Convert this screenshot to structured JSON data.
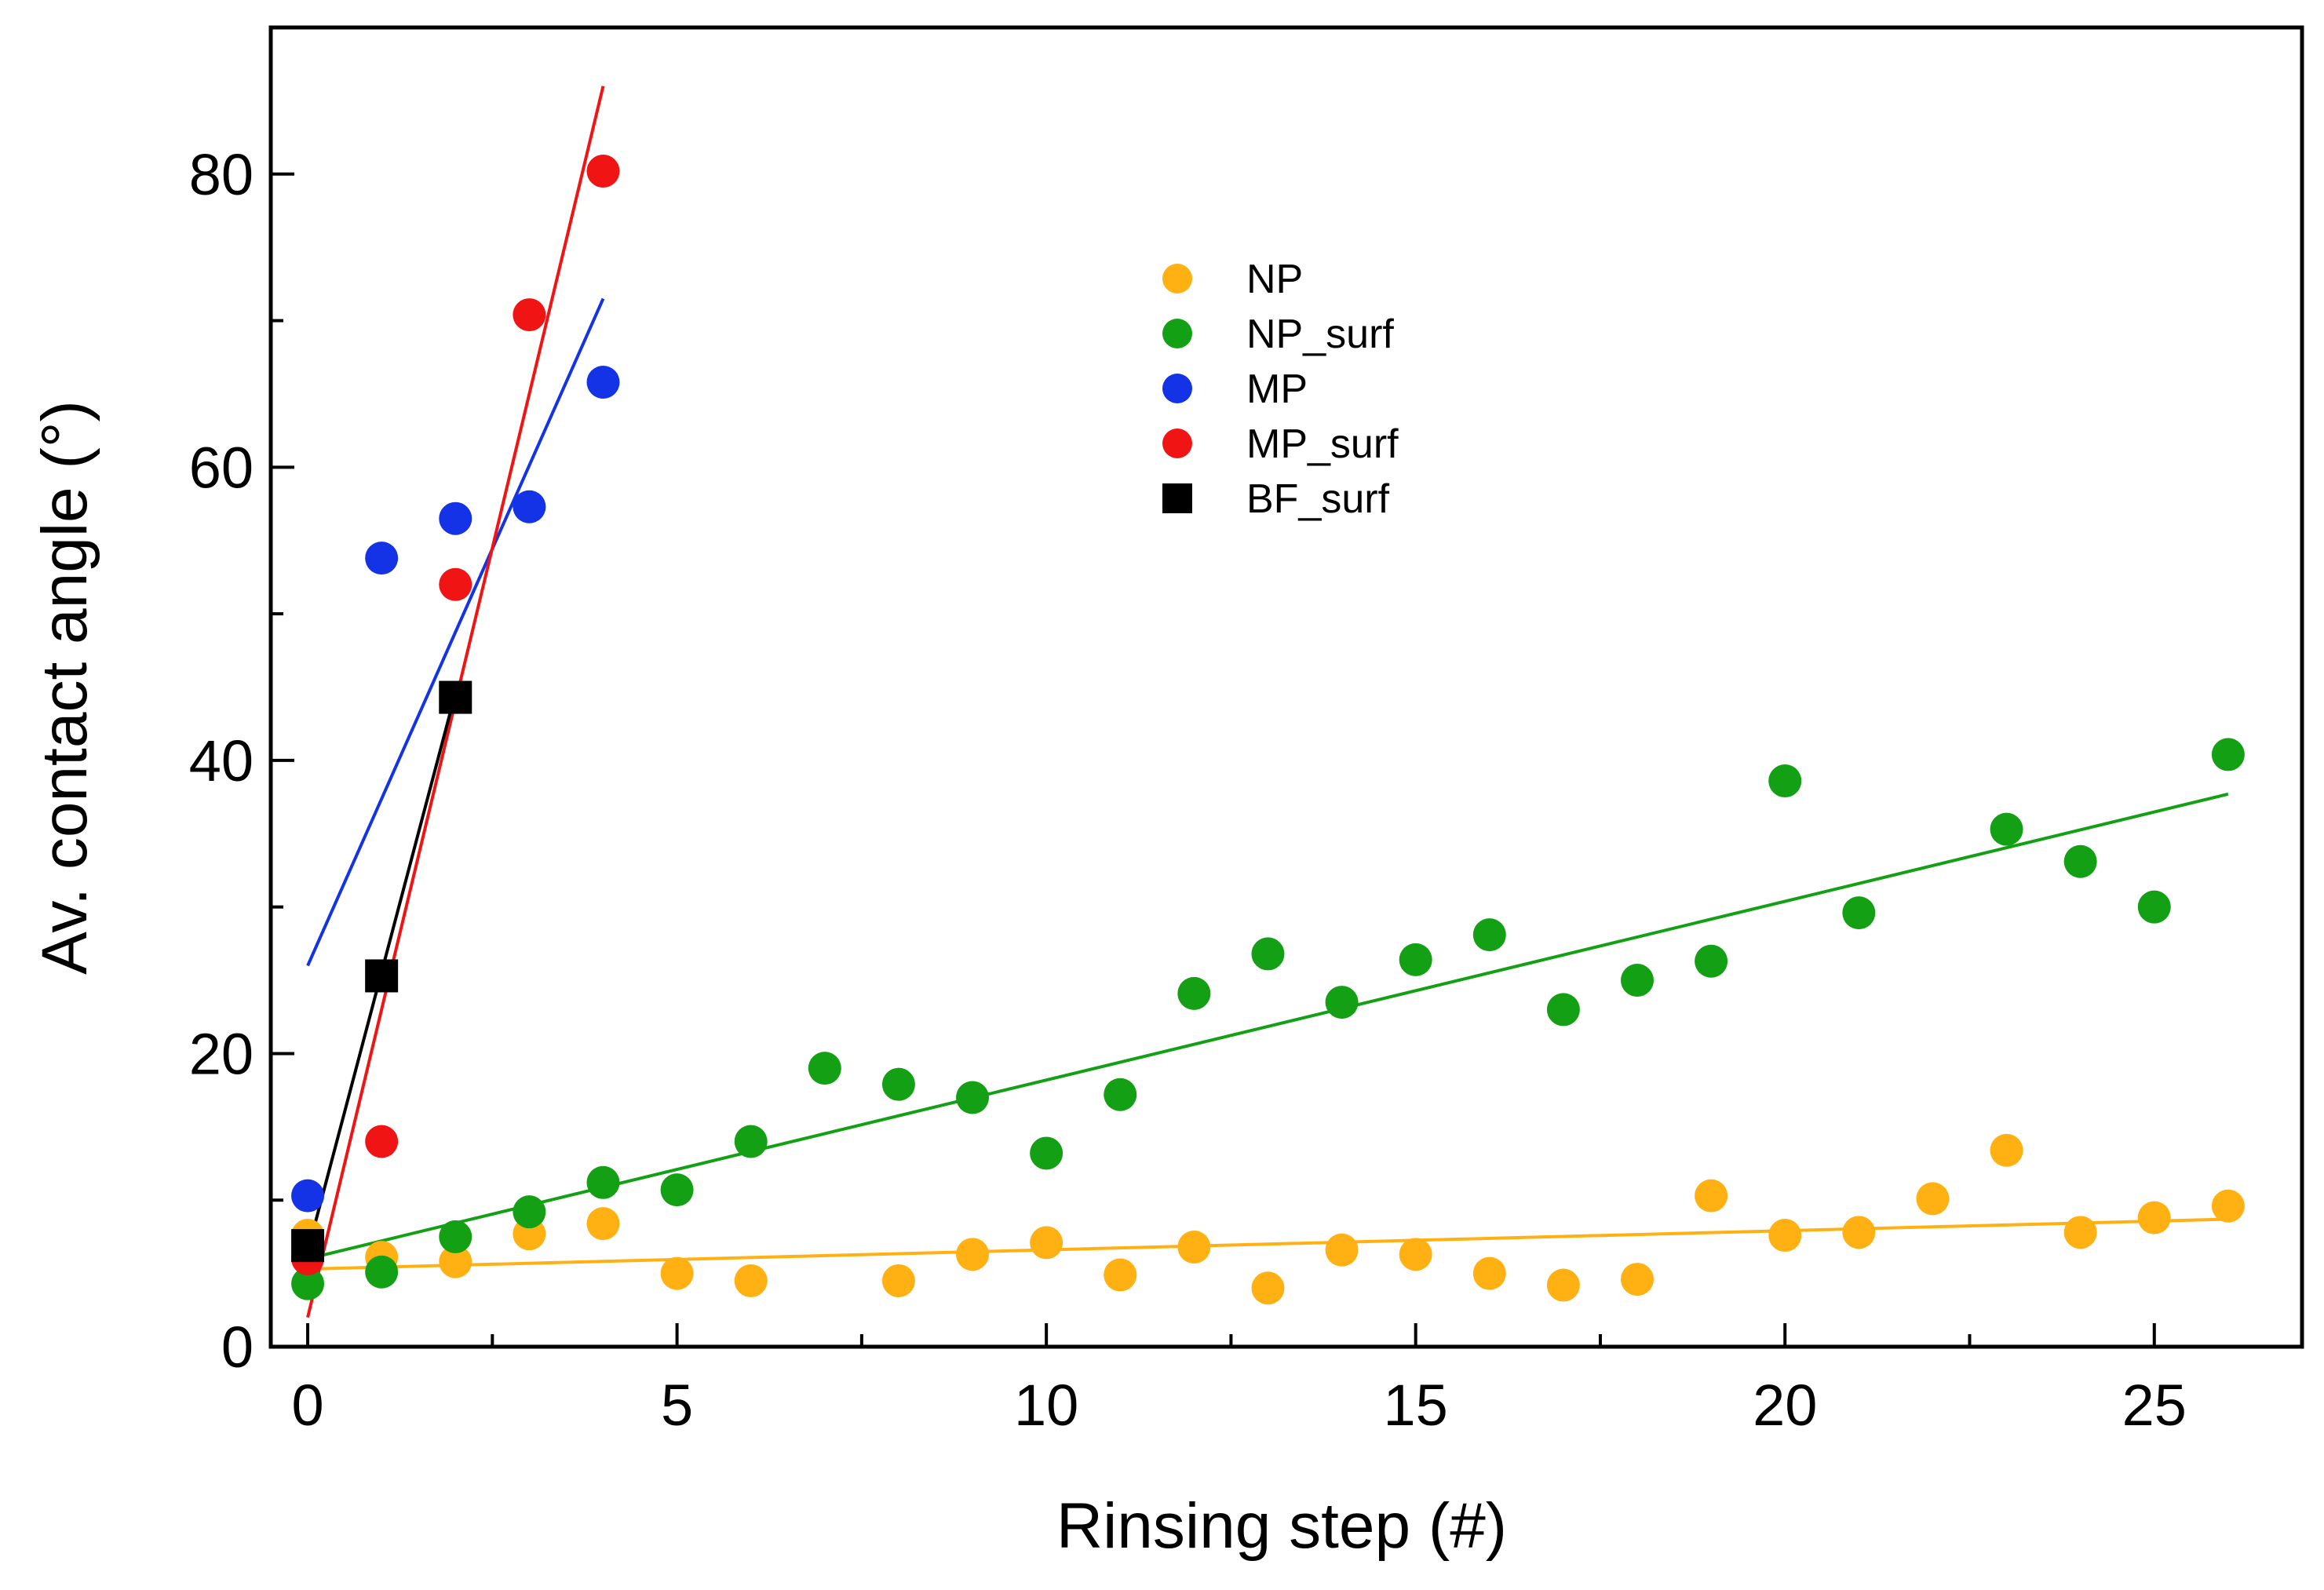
{
  "chart_data": {
    "type": "scatter",
    "title": "",
    "xlabel": "Rinsing step (#)",
    "ylabel": "Av. contact angle (°)",
    "xlim": [
      -0.5,
      27
    ],
    "ylim": [
      0,
      90
    ],
    "xticks": [
      0,
      5,
      10,
      15,
      20,
      25
    ],
    "yticks": [
      0,
      20,
      40,
      60,
      80
    ],
    "x_minor_ticks": [
      2.5,
      7.5,
      12.5,
      17.5,
      22.5
    ],
    "y_minor_ticks": [
      10,
      30,
      50,
      70
    ],
    "legend_position": "top-center",
    "series": [
      {
        "name": "NP",
        "marker": "circle",
        "color": "#FFB114",
        "x": [
          0,
          1,
          2,
          3,
          4,
          5,
          6,
          8,
          9,
          10,
          11,
          12,
          13,
          14,
          15,
          16,
          17,
          18,
          19,
          20,
          21,
          22,
          23,
          24,
          25,
          26
        ],
        "y": [
          7.6,
          6.1,
          5.8,
          7.7,
          8.4,
          5.0,
          4.5,
          4.5,
          6.3,
          7.1,
          4.9,
          6.8,
          4.0,
          6.6,
          6.3,
          5.0,
          4.2,
          4.6,
          10.3,
          7.6,
          7.8,
          10.1,
          13.4,
          7.8,
          8.8,
          9.6
        ],
        "fit": {
          "x": [
            0,
            26
          ],
          "y": [
            5.3,
            8.7
          ],
          "color": "#FFB114"
        }
      },
      {
        "name": "NP_surf",
        "marker": "circle",
        "color": "#14A014",
        "x": [
          0,
          1,
          2,
          3,
          4,
          5,
          6,
          7,
          8,
          9,
          10,
          11,
          12,
          13,
          14,
          15,
          16,
          17,
          18,
          19,
          20,
          21,
          23,
          24,
          25,
          26
        ],
        "y": [
          4.3,
          5.1,
          7.5,
          9.2,
          11.2,
          10.7,
          14.0,
          19.0,
          17.9,
          17.0,
          13.2,
          17.2,
          24.1,
          26.8,
          23.5,
          26.4,
          28.1,
          23.0,
          25.0,
          26.3,
          38.6,
          29.6,
          35.3,
          33.1,
          30.0,
          40.4
        ],
        "fit": {
          "x": [
            0,
            26
          ],
          "y": [
            6.0,
            37.7
          ],
          "color": "#14A014"
        }
      },
      {
        "name": "MP",
        "marker": "circle",
        "color": "#1432E6",
        "x": [
          0,
          1,
          2,
          3,
          4
        ],
        "y": [
          10.3,
          53.8,
          56.5,
          57.3,
          65.8
        ],
        "fit": {
          "x": [
            0,
            4
          ],
          "y": [
            26.0,
            71.5
          ],
          "color": "#1432E6"
        }
      },
      {
        "name": "MP_surf",
        "marker": "circle",
        "color": "#F01414",
        "x": [
          0,
          1,
          2,
          3,
          4
        ],
        "y": [
          6.0,
          14.0,
          52.0,
          70.4,
          80.2
        ],
        "fit": {
          "x": [
            0,
            4
          ],
          "y": [
            2.0,
            86.0
          ],
          "color": "#F01414"
        }
      },
      {
        "name": "BF_surf",
        "marker": "square",
        "color": "#000000",
        "x": [
          0,
          1,
          2
        ],
        "y": [
          6.9,
          25.3,
          44.3
        ],
        "fit": {
          "x": [
            0,
            2
          ],
          "y": [
            6.5,
            44.6
          ],
          "color": "#000000"
        }
      }
    ]
  }
}
